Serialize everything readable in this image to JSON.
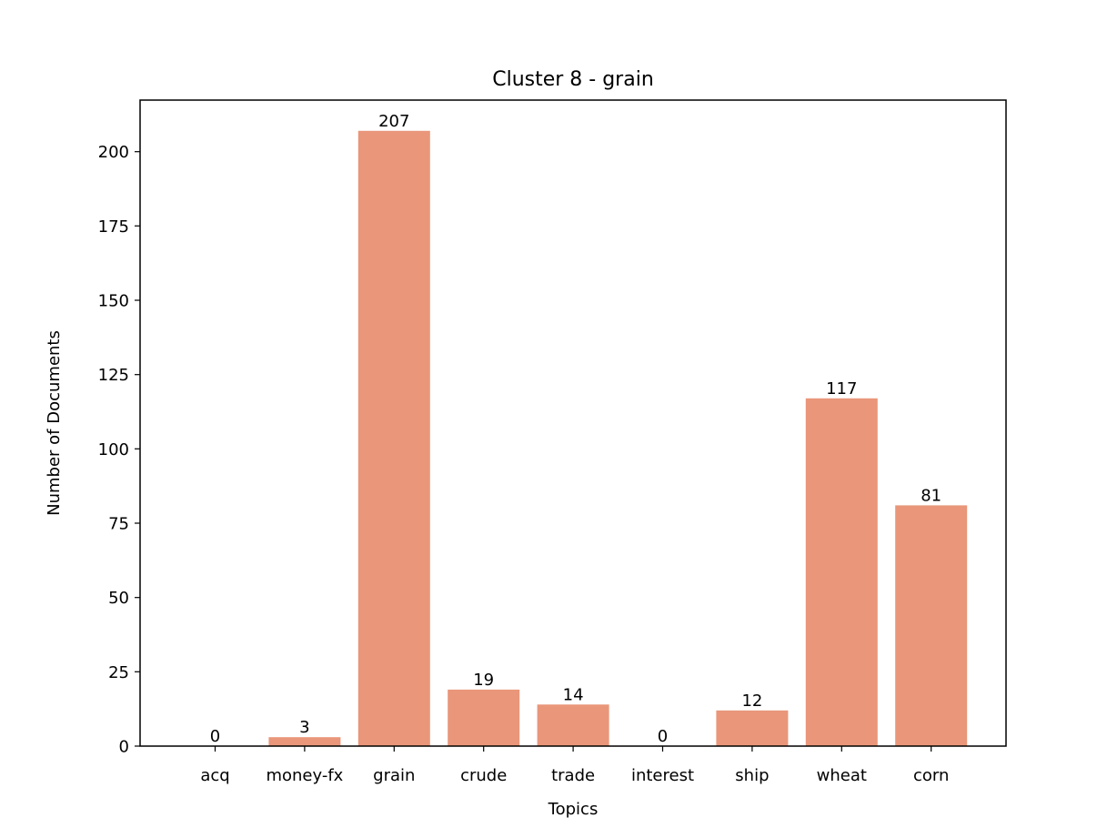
{
  "chart_data": {
    "type": "bar",
    "title": "Cluster 8 - grain",
    "xlabel": "Topics",
    "ylabel": "Number of Documents",
    "categories": [
      "acq",
      "money-fx",
      "grain",
      "crude",
      "trade",
      "interest",
      "ship",
      "wheat",
      "corn"
    ],
    "values": [
      0,
      3,
      207,
      19,
      14,
      0,
      12,
      117,
      81
    ],
    "ylim": [
      0,
      217.35
    ],
    "yticks": [
      0,
      25,
      50,
      75,
      100,
      125,
      150,
      175,
      200
    ],
    "bar_color": "#e9967a",
    "grid": false,
    "data_labels": true
  }
}
